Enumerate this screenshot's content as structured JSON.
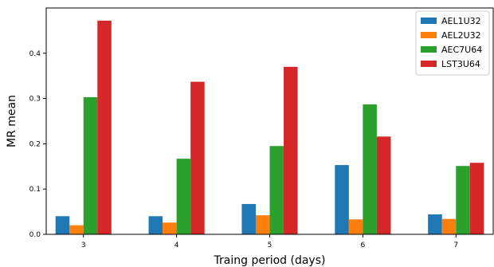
{
  "chart_data": {
    "type": "bar",
    "title": "",
    "xlabel": "Traing period (days)",
    "ylabel": "MR mean",
    "categories": [
      "3",
      "4",
      "5",
      "6",
      "7"
    ],
    "ylim": [
      0,
      0.5
    ],
    "yticks": [
      "0.0",
      "0.1",
      "0.2",
      "0.3",
      "0.4"
    ],
    "grid": false,
    "legend_position": "top-right",
    "series": [
      {
        "name": "AEL1U32",
        "color": "#1f77b4",
        "values": [
          0.04,
          0.04,
          0.067,
          0.153,
          0.044
        ]
      },
      {
        "name": "AEL2U32",
        "color": "#ff7f0e",
        "values": [
          0.02,
          0.026,
          0.042,
          0.033,
          0.034
        ]
      },
      {
        "name": "AEC7U64",
        "color": "#2ca02c",
        "values": [
          0.303,
          0.167,
          0.195,
          0.287,
          0.151
        ]
      },
      {
        "name": "LST3U64",
        "color": "#d62728",
        "values": [
          0.472,
          0.337,
          0.37,
          0.216,
          0.158
        ]
      }
    ]
  }
}
